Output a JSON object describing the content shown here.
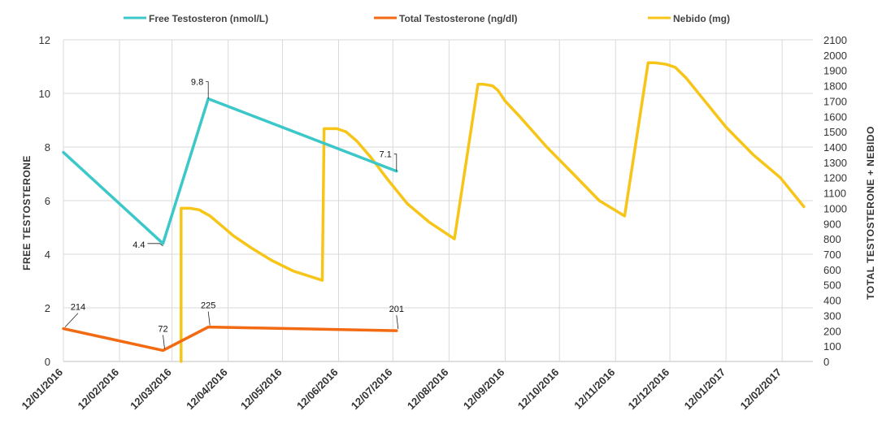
{
  "chart_data": {
    "type": "line",
    "legend": [
      {
        "label": "Free Testosteron (nmol/L)",
        "color": "#3cc8c8"
      },
      {
        "label": "Total Testosterone (ng/dl)",
        "color": "#f26a12"
      },
      {
        "label": "Nebido (mg)",
        "color": "#f7c518"
      }
    ],
    "legend_position": "top",
    "grid": true,
    "ylabel": "FREE TESTOSTERONE",
    "y2label": "TOTAL TESTOSTERONE + NEBIDO",
    "ylim": [
      0,
      12
    ],
    "y2lim": [
      0,
      2100
    ],
    "y_ticks": [
      "0",
      "2",
      "4",
      "6",
      "8",
      "10",
      "12"
    ],
    "y2_ticks": [
      "0",
      "100",
      "200",
      "300",
      "400",
      "500",
      "600",
      "700",
      "800",
      "900",
      "1000",
      "1100",
      "1200",
      "1300",
      "1400",
      "1500",
      "1600",
      "1700",
      "1800",
      "1900",
      "2000",
      "2100"
    ],
    "x_ticks": [
      "12/01/2016",
      "12/02/2016",
      "12/03/2016",
      "12/04/2016",
      "12/05/2016",
      "12/06/2016",
      "12/07/2016",
      "12/08/2016",
      "12/09/2016",
      "12/10/2016",
      "12/11/2016",
      "12/12/2016",
      "12/01/2017",
      "12/02/2017"
    ],
    "x_range": [
      "2016-01-12",
      "2017-03-01"
    ],
    "series": [
      {
        "name": "Free Testosteron (nmol/L)",
        "axis": "left",
        "color": "#3cc8c8",
        "x": [
          "2016-01-12",
          "2016-03-07",
          "2016-04-01",
          "2016-07-14"
        ],
        "y": [
          7.8,
          4.4,
          9.8,
          7.1
        ],
        "labels": [
          "",
          "4.4",
          "9.8",
          "7.1"
        ]
      },
      {
        "name": "Total Testosterone (ng/dl)",
        "axis": "right",
        "color": "#f26a12",
        "x": [
          "2016-01-12",
          "2016-03-07",
          "2016-04-01",
          "2016-07-14"
        ],
        "y": [
          214,
          72,
          225,
          201
        ],
        "labels": [
          "214",
          "72",
          "225",
          "201"
        ]
      },
      {
        "name": "Nebido (mg)",
        "axis": "right",
        "color": "#f7c518",
        "x": [
          "2016-03-17",
          "2016-03-17",
          "2016-03-22",
          "2016-03-27",
          "2016-04-02",
          "2016-04-08",
          "2016-04-15",
          "2016-04-25",
          "2016-05-06",
          "2016-05-18",
          "2016-06-03",
          "2016-06-04",
          "2016-06-11",
          "2016-06-16",
          "2016-06-22",
          "2016-06-30",
          "2016-07-09",
          "2016-07-20",
          "2016-08-01",
          "2016-08-15",
          "2016-08-28",
          "2016-08-31",
          "2016-09-05",
          "2016-09-08",
          "2016-09-12",
          "2016-09-20",
          "2016-10-05",
          "2016-10-20",
          "2016-11-03",
          "2016-11-17",
          "2016-11-30",
          "2016-12-04",
          "2016-12-10",
          "2016-12-15",
          "2016-12-21",
          "2017-01-01",
          "2017-01-12",
          "2017-01-27",
          "2017-02-11",
          "2017-02-24"
        ],
        "y": [
          0,
          1000,
          1000,
          990,
          950,
          890,
          820,
          740,
          660,
          590,
          530,
          1520,
          1520,
          1500,
          1440,
          1330,
          1190,
          1030,
          910,
          800,
          1810,
          1810,
          1800,
          1770,
          1700,
          1600,
          1400,
          1220,
          1050,
          950,
          1950,
          1950,
          1940,
          1920,
          1850,
          1690,
          1530,
          1350,
          1200,
          1010
        ]
      }
    ]
  }
}
